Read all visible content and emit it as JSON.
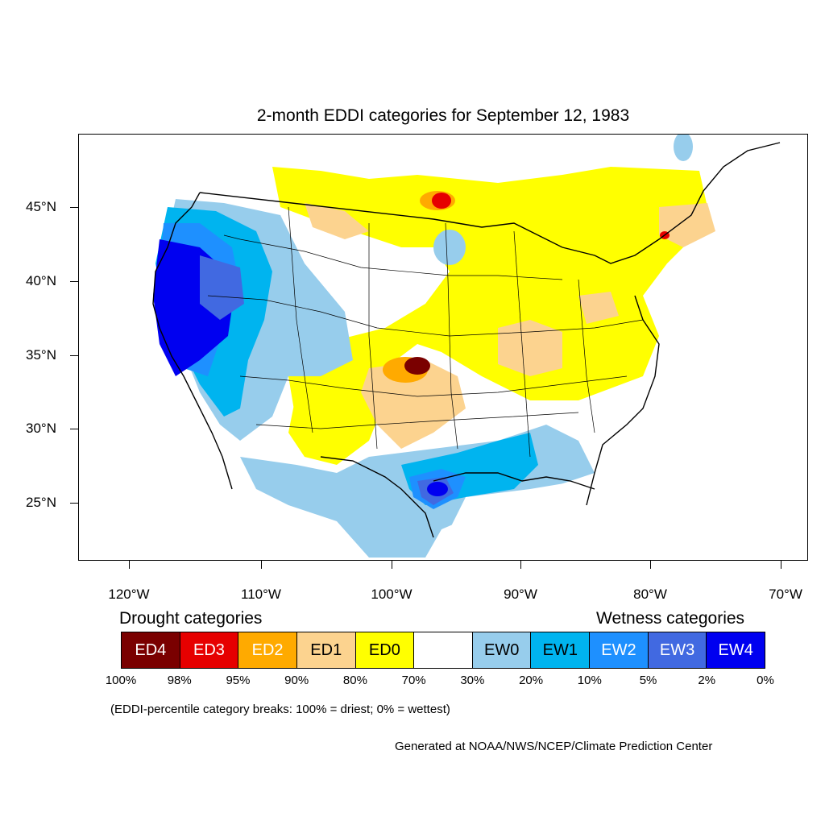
{
  "title": "2-month EDDI categories for September 12, 1983",
  "map": {
    "lat_labels": [
      "45°N",
      "40°N",
      "35°N",
      "30°N",
      "25°N"
    ],
    "lon_labels": [
      "120°W",
      "110°W",
      "100°W",
      "90°W",
      "80°W",
      "70°W"
    ]
  },
  "legend": {
    "drought_heading": "Drought categories",
    "wetness_heading": "Wetness categories",
    "categories": [
      {
        "label": "ED4",
        "color": "#7a0000",
        "text_color": "#ffffff"
      },
      {
        "label": "ED3",
        "color": "#e60000",
        "text_color": "#ffffff"
      },
      {
        "label": "ED2",
        "color": "#ffaa00",
        "text_color": "#ffffff"
      },
      {
        "label": "ED1",
        "color": "#fcd38f",
        "text_color": "#000000"
      },
      {
        "label": "ED0",
        "color": "#ffff00",
        "text_color": "#000000"
      },
      {
        "label": "",
        "color": "#ffffff",
        "text_color": "#000000"
      },
      {
        "label": "EW0",
        "color": "#97cdec",
        "text_color": "#000000"
      },
      {
        "label": "EW1",
        "color": "#00b4ef",
        "text_color": "#000000"
      },
      {
        "label": "EW2",
        "color": "#1e90ff",
        "text_color": "#ffffff"
      },
      {
        "label": "EW3",
        "color": "#4169e1",
        "text_color": "#ffffff"
      },
      {
        "label": "EW4",
        "color": "#0000f0",
        "text_color": "#ffffff"
      }
    ],
    "percentiles": [
      "100%",
      "98%",
      "95%",
      "90%",
      "80%",
      "70%",
      "30%",
      "20%",
      "10%",
      "5%",
      "2%",
      "0%"
    ],
    "note": "(EDDI-percentile category breaks: 100% = driest; 0% = wettest)"
  },
  "credit": "Generated at NOAA/NWS/NCEP/Climate Prediction Center"
}
